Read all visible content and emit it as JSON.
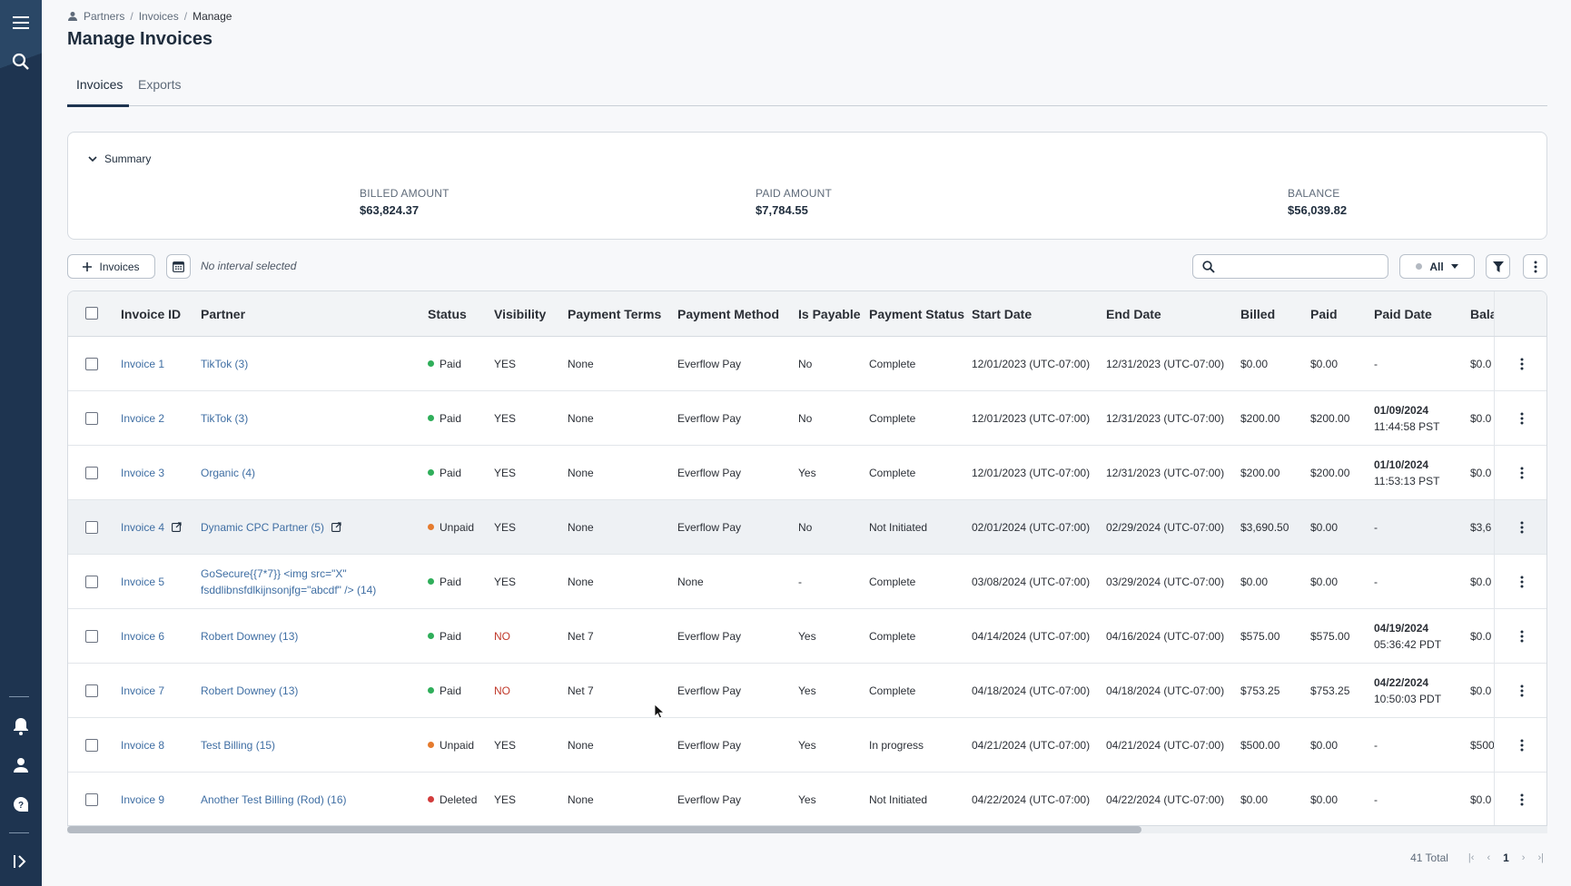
{
  "breadcrumb": {
    "items": [
      "Partners",
      "Invoices"
    ],
    "current": "Manage"
  },
  "page_title": "Manage Invoices",
  "tabs": [
    {
      "label": "Invoices",
      "active": true
    },
    {
      "label": "Exports",
      "active": false
    }
  ],
  "summary": {
    "label": "Summary",
    "billed": {
      "label": "BILLED AMOUNT",
      "value": "$63,824.37"
    },
    "paid": {
      "label": "PAID AMOUNT",
      "value": "$7,784.55"
    },
    "balance": {
      "label": "BALANCE",
      "value": "$56,039.82"
    }
  },
  "toolbar": {
    "add_label": "Invoices",
    "interval": "No interval selected",
    "search_placeholder": "",
    "filter_value": "All"
  },
  "columns": [
    "Invoice ID",
    "Partner",
    "Status",
    "Visibility",
    "Payment Terms",
    "Payment Method",
    "Is Payable",
    "Payment Status",
    "Start Date",
    "End Date",
    "Billed",
    "Paid",
    "Paid Date",
    "Bala"
  ],
  "rows": [
    {
      "id": "Invoice 1",
      "partner": "TikTok (3)",
      "status": "Paid",
      "visibility": "YES",
      "terms": "None",
      "method": "Everflow Pay",
      "payable": "No",
      "pstatus": "Complete",
      "start": "12/01/2023 (UTC-07:00)",
      "end": "12/31/2023 (UTC-07:00)",
      "billed": "$0.00",
      "paid": "$0.00",
      "paid_date": "-",
      "paid_time": "",
      "balance": "$0.0"
    },
    {
      "id": "Invoice 2",
      "partner": "TikTok (3)",
      "status": "Paid",
      "visibility": "YES",
      "terms": "None",
      "method": "Everflow Pay",
      "payable": "No",
      "pstatus": "Complete",
      "start": "12/01/2023 (UTC-07:00)",
      "end": "12/31/2023 (UTC-07:00)",
      "billed": "$200.00",
      "paid": "$200.00",
      "paid_date": "01/09/2024",
      "paid_time": "11:44:58 PST",
      "balance": "$0.0"
    },
    {
      "id": "Invoice 3",
      "partner": "Organic (4)",
      "status": "Paid",
      "visibility": "YES",
      "terms": "None",
      "method": "Everflow Pay",
      "payable": "Yes",
      "pstatus": "Complete",
      "start": "12/01/2023 (UTC-07:00)",
      "end": "12/31/2023 (UTC-07:00)",
      "billed": "$200.00",
      "paid": "$200.00",
      "paid_date": "01/10/2024",
      "paid_time": "11:53:13 PST",
      "balance": "$0.0"
    },
    {
      "id": "Invoice 4",
      "partner": "Dynamic CPC Partner (5)",
      "status": "Unpaid",
      "visibility": "YES",
      "terms": "None",
      "method": "Everflow Pay",
      "payable": "No",
      "pstatus": "Not Initiated",
      "start": "02/01/2024 (UTC-07:00)",
      "end": "02/29/2024 (UTC-07:00)",
      "billed": "$3,690.50",
      "paid": "$0.00",
      "paid_date": "-",
      "paid_time": "",
      "balance": "$3,6"
    },
    {
      "id": "Invoice 5",
      "partner": "GoSecure{{7*7}} <img src=\"X\"",
      "partner2": "fsddlibnsfdlkijnsonjfg=\"abcdf\" /> (14)",
      "status": "Paid",
      "visibility": "YES",
      "terms": "None",
      "method": "None",
      "payable": "-",
      "pstatus": "Complete",
      "start": "03/08/2024 (UTC-07:00)",
      "end": "03/29/2024 (UTC-07:00)",
      "billed": "$0.00",
      "paid": "$0.00",
      "paid_date": "-",
      "paid_time": "",
      "balance": "$0.0"
    },
    {
      "id": "Invoice 6",
      "partner": "Robert Downey (13)",
      "status": "Paid",
      "visibility": "NO",
      "terms": "Net 7",
      "method": "Everflow Pay",
      "payable": "Yes",
      "pstatus": "Complete",
      "start": "04/14/2024 (UTC-07:00)",
      "end": "04/16/2024 (UTC-07:00)",
      "billed": "$575.00",
      "paid": "$575.00",
      "paid_date": "04/19/2024",
      "paid_time": "05:36:42 PDT",
      "balance": "$0.0"
    },
    {
      "id": "Invoice 7",
      "partner": "Robert Downey (13)",
      "status": "Paid",
      "visibility": "NO",
      "terms": "Net 7",
      "method": "Everflow Pay",
      "payable": "Yes",
      "pstatus": "Complete",
      "start": "04/18/2024 (UTC-07:00)",
      "end": "04/18/2024 (UTC-07:00)",
      "billed": "$753.25",
      "paid": "$753.25",
      "paid_date": "04/22/2024",
      "paid_time": "10:50:03 PDT",
      "balance": "$0.0"
    },
    {
      "id": "Invoice 8",
      "partner": "Test Billing (15)",
      "status": "Unpaid",
      "visibility": "YES",
      "terms": "None",
      "method": "Everflow Pay",
      "payable": "Yes",
      "pstatus": "In progress",
      "start": "04/21/2024 (UTC-07:00)",
      "end": "04/21/2024 (UTC-07:00)",
      "billed": "$500.00",
      "paid": "$0.00",
      "paid_date": "-",
      "paid_time": "",
      "balance": "$500"
    },
    {
      "id": "Invoice 9",
      "partner": "Another Test Billing (Rod) (16)",
      "status": "Deleted",
      "visibility": "YES",
      "terms": "None",
      "method": "Everflow Pay",
      "payable": "Yes",
      "pstatus": "Not Initiated",
      "start": "04/22/2024 (UTC-07:00)",
      "end": "04/22/2024 (UTC-07:00)",
      "billed": "$0.00",
      "paid": "$0.00",
      "paid_date": "-",
      "paid_time": "",
      "balance": "$0.0"
    }
  ],
  "status_colors": {
    "Paid": "#2fae5a",
    "Unpaid": "#e57b2e",
    "Deleted": "#d23c3c"
  },
  "pagination": {
    "total": "41 Total",
    "page": "1"
  },
  "icons": [
    "menu-icon",
    "search-icon",
    "bell-icon",
    "user-icon",
    "help-icon",
    "expand-sidebar-icon",
    "partners-icon",
    "chevron-down-icon",
    "plus-icon",
    "calendar-icon",
    "filter-icon",
    "kebab-icon",
    "external-link-icon"
  ]
}
